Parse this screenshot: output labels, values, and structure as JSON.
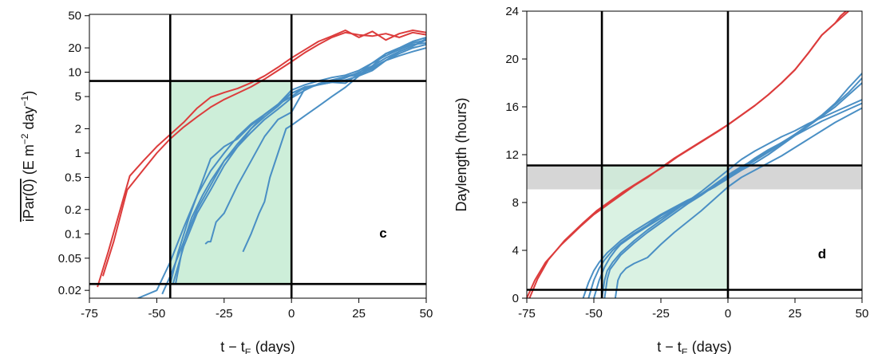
{
  "chart_data": [
    {
      "type": "line",
      "panel_label": "c",
      "xlabel_base": "t − t",
      "xlabel_sub": "E",
      "xlabel_tail": " (days)",
      "ylabel_main": "iPar(0)",
      "ylabel_unit_a": " (E m",
      "ylabel_sup1": "−2",
      "ylabel_unit_b": " day",
      "ylabel_sup2": "−1",
      "ylabel_unit_c": ")",
      "xlim": [
        -75,
        50
      ],
      "ylim": [
        0.016,
        52
      ],
      "yscale": "log",
      "x_ticks": [
        -75,
        -50,
        -25,
        0,
        25,
        50
      ],
      "x_tick_labels": [
        "-75",
        "-50",
        "-25",
        "0",
        "25",
        "50"
      ],
      "y_ticks": [
        0.02,
        0.05,
        0.1,
        0.2,
        0.5,
        1,
        2,
        5,
        10,
        20,
        50
      ],
      "y_tick_labels": [
        "0.02",
        "0.05",
        "0.1",
        "0.2",
        "0.5",
        "1",
        "2",
        "5",
        "10",
        "20",
        "50"
      ],
      "shaded_region": {
        "x": [
          -45,
          0
        ],
        "y": [
          0.024,
          7.8
        ],
        "color": "#cdeed9"
      },
      "reference_lines": {
        "vertical": [
          -45,
          0
        ],
        "horizontal": [
          0.024,
          7.8
        ]
      },
      "series_colors": {
        "red": "#dc3c3c",
        "blue": "#4a8fc4"
      },
      "series": [
        {
          "color": "red",
          "x": [
            -70,
            -66,
            -61,
            -55,
            -50,
            -45,
            -40,
            -35,
            -30,
            -25,
            -20,
            -15,
            -10,
            -5,
            0,
            5,
            10,
            15,
            20,
            25,
            30,
            35,
            40,
            45,
            50
          ],
          "y": [
            0.03,
            0.08,
            0.35,
            0.62,
            1.0,
            1.5,
            2.1,
            2.8,
            3.7,
            4.6,
            5.5,
            6.6,
            8.2,
            10.5,
            13.5,
            17.5,
            22,
            27,
            31,
            29,
            28,
            30,
            27,
            31,
            29
          ]
        },
        {
          "color": "red",
          "x": [
            -72,
            -68,
            -60,
            -55,
            -50,
            -45,
            -40,
            -35,
            -30,
            -25,
            -20,
            -15,
            -10,
            -5,
            0,
            5,
            10,
            15,
            20,
            25,
            30,
            35,
            40,
            45,
            50
          ],
          "y": [
            0.022,
            0.06,
            0.52,
            0.8,
            1.2,
            1.7,
            2.4,
            3.6,
            4.9,
            5.6,
            6.3,
            7.4,
            9.0,
            11.5,
            15,
            19,
            24,
            28,
            33,
            27,
            32,
            25,
            30,
            33,
            31
          ]
        },
        {
          "color": "blue",
          "x": [
            -57,
            -50,
            -45,
            -40,
            -35,
            -30,
            -25,
            -20,
            -15,
            -10,
            -5,
            0,
            5,
            10,
            15,
            20,
            25,
            30,
            35,
            40,
            45,
            50
          ],
          "y": [
            0.016,
            0.02,
            0.045,
            0.12,
            0.3,
            0.6,
            1.0,
            1.6,
            2.3,
            3.0,
            4.0,
            6.0,
            7.0,
            7.8,
            8.6,
            9.2,
            10.5,
            13,
            16,
            19,
            23,
            25
          ]
        },
        {
          "color": "blue",
          "x": [
            -48,
            -45,
            -40,
            -35,
            -30,
            -25,
            -20,
            -15,
            -10,
            -5,
            0,
            5,
            10,
            15,
            20,
            25,
            30,
            35,
            40,
            45,
            50
          ],
          "y": [
            0.018,
            0.03,
            0.08,
            0.2,
            0.4,
            0.8,
            1.3,
            2.0,
            2.8,
            3.8,
            5.5,
            6.6,
            7.0,
            7.5,
            7.3,
            9.5,
            11,
            14,
            17,
            20,
            22
          ]
        },
        {
          "color": "blue",
          "x": [
            -44,
            -40,
            -35,
            -30,
            -25,
            -20,
            -15,
            -10,
            -5,
            0,
            5,
            10,
            15,
            20,
            25,
            30,
            35,
            40,
            45,
            50
          ],
          "y": [
            0.024,
            0.07,
            0.18,
            0.35,
            0.7,
            1.2,
            1.8,
            2.6,
            3.5,
            4.8,
            6.0,
            7.2,
            8.0,
            8.8,
            9.3,
            12,
            15,
            18,
            21,
            25
          ]
        },
        {
          "color": "blue",
          "x": [
            -43,
            -40,
            -37,
            -33,
            -30,
            -25,
            -20,
            -15,
            -10,
            -5,
            0,
            5,
            10,
            15,
            20,
            25,
            30,
            35,
            40,
            45,
            50
          ],
          "y": [
            0.024,
            0.08,
            0.16,
            0.3,
            0.45,
            0.8,
            1.2,
            2.0,
            3.0,
            4.0,
            5.0,
            6.5,
            7.0,
            7.6,
            8.5,
            10,
            12,
            17,
            20,
            24,
            27
          ]
        },
        {
          "color": "blue",
          "x": [
            -32,
            -31,
            -30,
            -28,
            -25,
            -20,
            -15,
            -10,
            -5,
            0,
            5,
            10,
            15,
            20,
            25,
            30,
            35,
            40,
            45,
            50
          ],
          "y": [
            0.075,
            0.08,
            0.08,
            0.14,
            0.18,
            0.4,
            0.8,
            1.6,
            2.6,
            3.2,
            6.3,
            7.0,
            7.5,
            8.8,
            9.8,
            13,
            17,
            19,
            22,
            23
          ]
        },
        {
          "color": "blue",
          "x": [
            -45,
            -42,
            -38,
            -35,
            -30,
            -25,
            -20,
            -15,
            -10,
            -5,
            0,
            5,
            10,
            15,
            20,
            25,
            30,
            35,
            40,
            45,
            50
          ],
          "y": [
            0.024,
            0.06,
            0.16,
            0.3,
            0.85,
            1.2,
            1.5,
            2.2,
            3.0,
            4.0,
            5.5,
            6.3,
            7.0,
            7.5,
            8.0,
            9.0,
            10.5,
            14,
            18,
            21,
            26
          ]
        },
        {
          "color": "blue",
          "x": [
            -18,
            -15,
            -12,
            -10,
            -8,
            -5,
            -2,
            0,
            5,
            10,
            15,
            20,
            25,
            30,
            35,
            40,
            45,
            50
          ],
          "y": [
            0.06,
            0.1,
            0.18,
            0.25,
            0.5,
            1.0,
            2.0,
            2.2,
            2.9,
            3.8,
            5.0,
            6.5,
            9.0,
            11.5,
            14,
            16,
            18,
            20
          ]
        }
      ]
    },
    {
      "type": "line",
      "panel_label": "d",
      "xlabel_base": "t − t",
      "xlabel_sub": "E",
      "xlabel_tail": " (days)",
      "ylabel": "Daylength (hours)",
      "xlim": [
        -75,
        50
      ],
      "ylim": [
        0,
        24
      ],
      "yscale": "linear",
      "x_ticks": [
        -75,
        -50,
        -25,
        0,
        25,
        50
      ],
      "x_tick_labels": [
        "-75",
        "-50",
        "-25",
        "0",
        "25",
        "50"
      ],
      "y_ticks": [
        0,
        4,
        8,
        12,
        16,
        20,
        24
      ],
      "y_tick_labels": [
        "0",
        "4",
        "8",
        "12",
        "16",
        "20",
        "24"
      ],
      "shaded_region": {
        "x": [
          -47,
          0
        ],
        "y": [
          0.7,
          11.1
        ],
        "color": "#cdeed9"
      },
      "grey_band": {
        "y": [
          9.1,
          11.1
        ],
        "color": "#d6d6d6"
      },
      "reference_lines": {
        "vertical": [
          -47,
          0
        ],
        "horizontal": [
          0.7,
          11.1
        ]
      },
      "series_colors": {
        "red": "#dc3c3c",
        "blue": "#4a8fc4"
      },
      "series": [
        {
          "color": "red",
          "x": [
            -75,
            -72,
            -68,
            -62,
            -55,
            -50,
            -45,
            -40,
            -35,
            -30,
            -25,
            -20,
            -15,
            -10,
            -5,
            0,
            5,
            10,
            15,
            20,
            25,
            30,
            35,
            40,
            42,
            44
          ],
          "y": [
            0,
            1.5,
            3.0,
            4.5,
            6.0,
            7.0,
            7.8,
            8.6,
            9.4,
            10.1,
            10.9,
            11.7,
            12.4,
            13.1,
            13.8,
            14.5,
            15.3,
            16.1,
            17.0,
            18.0,
            19.1,
            20.5,
            22.0,
            23.0,
            23.6,
            24
          ]
        },
        {
          "color": "red",
          "x": [
            -74,
            -71,
            -67,
            -61,
            -54,
            -49,
            -44,
            -39,
            -34,
            -29,
            -24,
            -19,
            -14,
            -9,
            -4,
            0,
            5,
            10,
            15,
            20,
            25,
            30,
            35,
            40,
            43,
            45
          ],
          "y": [
            0,
            1.6,
            3.2,
            4.8,
            6.3,
            7.3,
            8.1,
            8.9,
            9.6,
            10.3,
            11.0,
            11.8,
            12.5,
            13.2,
            13.9,
            14.5,
            15.3,
            16.1,
            17.0,
            18.0,
            19.1,
            20.5,
            22.0,
            23.0,
            23.6,
            24
          ]
        },
        {
          "color": "blue",
          "x": [
            -54,
            -52,
            -50,
            -48,
            -45,
            -40,
            -35,
            -30,
            -25,
            -20,
            -15,
            -10,
            -5,
            0,
            5,
            10,
            15,
            20,
            25,
            30,
            35,
            40,
            45,
            50
          ],
          "y": [
            0,
            1.3,
            2.3,
            3.0,
            3.8,
            4.8,
            5.6,
            6.3,
            7.0,
            7.6,
            8.2,
            8.7,
            9.3,
            10.0,
            10.7,
            11.3,
            12.0,
            12.8,
            13.6,
            14.4,
            15.3,
            16.3,
            17.6,
            18.8
          ]
        },
        {
          "color": "blue",
          "x": [
            -52,
            -50,
            -48,
            -46,
            -43,
            -40,
            -35,
            -30,
            -25,
            -20,
            -15,
            -10,
            -5,
            0,
            5,
            10,
            15,
            20,
            25,
            30,
            35,
            40,
            45,
            50
          ],
          "y": [
            0,
            1.5,
            2.5,
            3.2,
            4.0,
            4.6,
            5.4,
            6.1,
            6.9,
            7.5,
            8.1,
            8.7,
            9.3,
            10.1,
            10.8,
            11.5,
            12.2,
            12.9,
            13.7,
            14.5,
            15.3,
            16.2,
            17.2,
            18.4
          ]
        },
        {
          "color": "blue",
          "x": [
            -50,
            -48,
            -46,
            -44,
            -42,
            -40,
            -35,
            -30,
            -25,
            -20,
            -15,
            -10,
            -5,
            0,
            5,
            10,
            15,
            20,
            25,
            30,
            35,
            40,
            45,
            50
          ],
          "y": [
            0,
            1.5,
            2.6,
            3.4,
            4.0,
            4.5,
            5.3,
            6.0,
            6.7,
            7.4,
            8.0,
            8.7,
            9.5,
            10.3,
            11.0,
            11.6,
            12.3,
            13.0,
            13.7,
            14.4,
            15.2,
            16.0,
            17.0,
            18.0
          ]
        },
        {
          "color": "blue",
          "x": [
            -47,
            -46,
            -45,
            -43,
            -40,
            -35,
            -30,
            -25,
            -20,
            -15,
            -10,
            -5,
            0,
            5,
            10,
            15,
            20,
            25,
            30,
            35,
            40,
            45,
            50
          ],
          "y": [
            0,
            1.5,
            2.3,
            3.0,
            3.8,
            4.8,
            5.7,
            6.5,
            7.3,
            8.1,
            8.9,
            9.8,
            10.7,
            11.6,
            12.3,
            12.9,
            13.5,
            14.0,
            14.6,
            15.1,
            15.6,
            16.1,
            16.6
          ]
        },
        {
          "color": "blue",
          "x": [
            -46,
            -45,
            -44,
            -42,
            -40,
            -35,
            -30,
            -25,
            -20,
            -15,
            -10,
            -5,
            0,
            5,
            10,
            15,
            20,
            25,
            30,
            35,
            40,
            45,
            50
          ],
          "y": [
            0,
            1.6,
            2.4,
            3.0,
            3.6,
            4.6,
            5.5,
            6.3,
            7.1,
            7.9,
            8.6,
            9.4,
            10.2,
            10.9,
            11.7,
            12.4,
            13.0,
            13.6,
            14.2,
            14.8,
            15.3,
            15.8,
            16.3
          ]
        },
        {
          "color": "blue",
          "x": [
            -42,
            -41,
            -40,
            -38,
            -35,
            -30,
            -25,
            -20,
            -15,
            -10,
            -5,
            0,
            5,
            10,
            15,
            20,
            25,
            30,
            35,
            40,
            45,
            50
          ],
          "y": [
            0,
            1.5,
            2.0,
            2.5,
            2.9,
            3.4,
            4.5,
            5.5,
            6.4,
            7.3,
            8.3,
            9.3,
            10.1,
            10.7,
            11.3,
            11.9,
            12.6,
            13.3,
            14.0,
            14.7,
            15.3,
            15.9
          ]
        }
      ]
    }
  ]
}
